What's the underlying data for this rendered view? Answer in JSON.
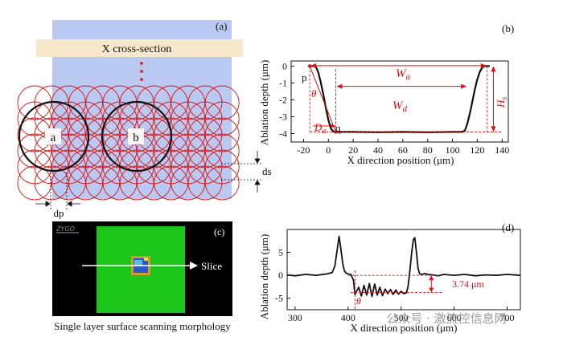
{
  "panels": {
    "a": {
      "label": "(a)",
      "band_label": "X cross-section",
      "circle_a": "a",
      "circle_b": "b",
      "ds_label": "ds",
      "dp_label": "dp"
    },
    "b": {
      "label": "(b)"
    },
    "c": {
      "label": "(c)",
      "logo_text": "ZYGO",
      "slice_label": "Slice",
      "caption": "Single layer surface scanning morphology"
    },
    "d": {
      "label": "(d)"
    }
  },
  "chart_data": [
    {
      "id": "b",
      "type": "line",
      "ylabel": "Ablation depth (μm)",
      "xlabel": "X direction position (μm)",
      "xlim": [
        -30,
        145
      ],
      "ylim": [
        -4.5,
        0.3
      ],
      "xticks": [
        -20,
        0,
        20,
        40,
        60,
        80,
        100,
        120,
        140
      ],
      "yticks": [
        0,
        -1,
        -2,
        -3,
        -4
      ],
      "x": [
        -15,
        -12,
        -10,
        -8,
        -6,
        -4,
        -2,
        0,
        2,
        4,
        6,
        8,
        20,
        40,
        60,
        80,
        100,
        108,
        110,
        112,
        114,
        116,
        118,
        120,
        122,
        124,
        126,
        128,
        130
      ],
      "y": [
        0,
        0,
        -0.05,
        -0.4,
        -1.0,
        -1.7,
        -2.5,
        -3.2,
        -3.7,
        -3.88,
        -3.92,
        -3.9,
        -3.9,
        -3.92,
        -3.9,
        -3.92,
        -3.9,
        -3.9,
        -3.82,
        -3.4,
        -2.8,
        -2.1,
        -1.4,
        -0.8,
        -0.35,
        -0.08,
        0,
        0,
        0
      ],
      "annotations": {
        "p": "p",
        "q": "q",
        "theta": "θ",
        "Wa": "W",
        "Wa_sub": "a",
        "Wd": "W",
        "Wd_sub": "d",
        "Da": "D",
        "Da_sub": "a",
        "Hs": "H",
        "Hs_sub": "s"
      }
    },
    {
      "id": "d",
      "type": "line",
      "ylabel": "Ablation depth (μm)",
      "xlabel": "X direction position (μm)",
      "xlim": [
        285,
        725
      ],
      "ylim": [
        -7.5,
        10
      ],
      "xticks": [
        300,
        400,
        500,
        600,
        700
      ],
      "yticks": [
        5,
        0,
        -5
      ],
      "x": [
        285,
        300,
        320,
        340,
        360,
        370,
        375,
        380,
        383,
        386,
        390,
        393,
        396,
        400,
        405,
        410,
        413,
        416,
        420,
        425,
        430,
        435,
        440,
        445,
        450,
        455,
        460,
        465,
        470,
        475,
        480,
        485,
        490,
        495,
        500,
        505,
        510,
        513,
        516,
        520,
        523,
        526,
        529,
        532,
        535,
        540,
        545,
        550,
        560,
        570,
        580,
        600,
        620,
        640,
        660,
        680,
        700,
        725
      ],
      "y": [
        0.1,
        -0.1,
        0.2,
        0,
        0.3,
        0.6,
        2,
        6,
        8.5,
        6,
        2.5,
        1,
        0.5,
        0.3,
        0.2,
        -1,
        -4.2,
        -3.5,
        -2.6,
        -4.5,
        -2.2,
        -4.3,
        -1.8,
        -4.6,
        -1.9,
        -4.3,
        -2.6,
        -4.4,
        -3.0,
        -4.0,
        -3.1,
        -4.2,
        -3.2,
        -4.1,
        -3.5,
        -4.0,
        -3.8,
        -2.5,
        0.5,
        5,
        7.8,
        8.2,
        5,
        1.5,
        0.3,
        0.2,
        0.4,
        0.2,
        0.1,
        -0.1,
        0.2,
        0,
        0.2,
        -0.1,
        0.1,
        0,
        0.2,
        0
      ],
      "annotations": {
        "depth": "3.74 μm",
        "theta": "θ"
      }
    }
  ],
  "watermark": {
    "text": "公众号 · 激流控信息网"
  },
  "colors": {
    "band_blue": "#b9c9f1",
    "band_cream": "#f7e8cc",
    "red": "#e01010",
    "green": "#1cc41c",
    "sample_bg": "#000000"
  }
}
